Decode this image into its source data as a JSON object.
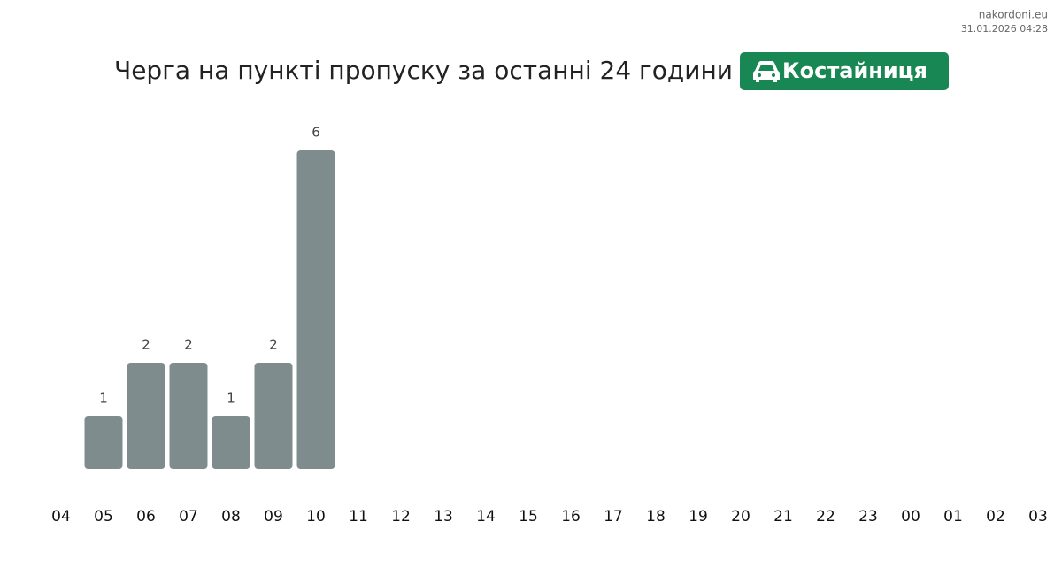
{
  "site": "nakordoni.eu",
  "timestamp": "31.01.2026 04:28",
  "chart_data": {
    "type": "bar",
    "title": "Черга на пункті пропуску за останні 24 години",
    "badge": "Костайниця",
    "categories": [
      "04",
      "05",
      "06",
      "07",
      "08",
      "09",
      "10",
      "11",
      "12",
      "13",
      "14",
      "15",
      "16",
      "17",
      "18",
      "19",
      "20",
      "21",
      "22",
      "23",
      "00",
      "01",
      "02",
      "03"
    ],
    "values": [
      null,
      1,
      2,
      2,
      1,
      2,
      6,
      null,
      null,
      null,
      null,
      null,
      null,
      null,
      null,
      null,
      null,
      null,
      null,
      null,
      null,
      null,
      null,
      null
    ],
    "color": "#7f8c8d",
    "badge_color": "#198754"
  }
}
